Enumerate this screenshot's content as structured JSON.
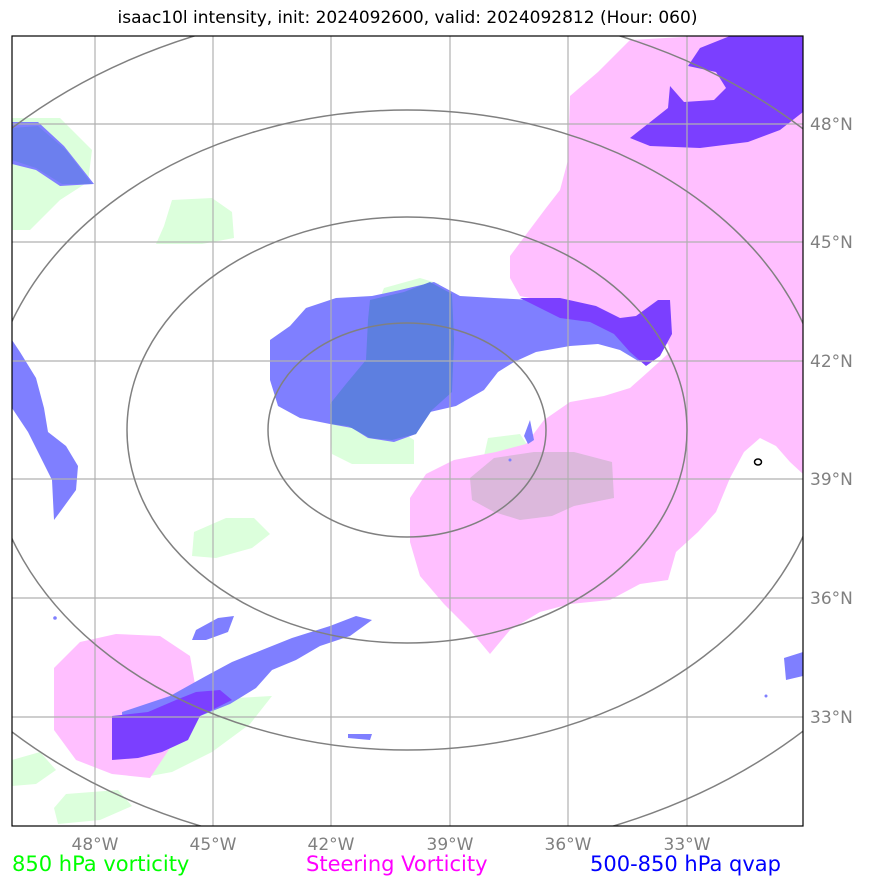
{
  "title": "isaac10l intensity, init: 2024092600, valid: 2024092812 (Hour: 060)",
  "lon_labels": [
    "48°W",
    "45°W",
    "42°W",
    "39°W",
    "36°W",
    "33°W"
  ],
  "lat_labels": [
    "48°N",
    "45°N",
    "42°N",
    "39°N",
    "36°N",
    "33°N"
  ],
  "legend": [
    {
      "label": "850 hPa vorticity",
      "color": "#00ff00"
    },
    {
      "label": "Steering Vorticity",
      "color": "#ff00ff"
    },
    {
      "label": "500-850 hPa qvap",
      "color": "#0000ff"
    }
  ],
  "colors": {
    "vorticity_850": "#dcffdc",
    "steering_vorticity": "#ffbfff",
    "qvap": "#7f7fff",
    "qvap_strong": "#7b3fff",
    "grid": "#b0b0b0",
    "range_rings": "#808080"
  },
  "map_extent": {
    "lon_min": -50,
    "lon_max": -30,
    "lat_min": 30,
    "lat_max": 50
  },
  "storm_center": {
    "lon": -40,
    "lat": 40
  },
  "marker_text": "o"
}
